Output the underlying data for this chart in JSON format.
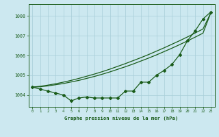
{
  "title": "Graphe pression niveau de la mer (hPa)",
  "background_color": "#cce8f0",
  "grid_color": "#a8cdd8",
  "line_color": "#1a5c1a",
  "xlim": [
    -0.5,
    23.5
  ],
  "ylim": [
    1003.4,
    1008.6
  ],
  "yticks": [
    1004,
    1005,
    1006,
    1007,
    1008
  ],
  "xticks": [
    0,
    1,
    2,
    3,
    4,
    5,
    6,
    7,
    8,
    9,
    10,
    11,
    12,
    13,
    14,
    15,
    16,
    17,
    18,
    19,
    20,
    21,
    22,
    23
  ],
  "jagged": [
    1004.4,
    1004.3,
    1004.2,
    1004.1,
    1004.0,
    1003.7,
    1003.85,
    1003.9,
    1003.85,
    1003.85,
    1003.85,
    1003.85,
    1004.2,
    1004.2,
    1004.65,
    1004.65,
    1005.0,
    1005.25,
    1005.55,
    1006.05,
    1006.75,
    1007.25,
    1007.85,
    1008.2
  ],
  "smooth1": [
    1004.4,
    1004.42,
    1004.46,
    1004.52,
    1004.58,
    1004.66,
    1004.74,
    1004.84,
    1004.94,
    1005.05,
    1005.17,
    1005.3,
    1005.43,
    1005.57,
    1005.72,
    1005.87,
    1006.03,
    1006.2,
    1006.37,
    1006.55,
    1006.74,
    1006.93,
    1007.13,
    1008.15
  ],
  "smooth2": [
    1004.4,
    1004.44,
    1004.5,
    1004.57,
    1004.65,
    1004.74,
    1004.84,
    1004.95,
    1005.06,
    1005.18,
    1005.31,
    1005.45,
    1005.59,
    1005.74,
    1005.89,
    1006.05,
    1006.22,
    1006.39,
    1006.57,
    1006.75,
    1006.94,
    1007.14,
    1007.34,
    1008.15
  ]
}
